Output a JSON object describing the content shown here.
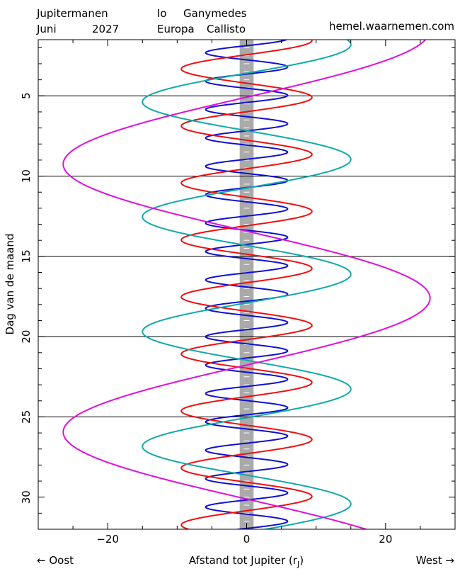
{
  "header": {
    "title": "Jupitermanen",
    "month": "Juni",
    "year": "2027",
    "website": "hemel.waarnemen.com"
  },
  "colors": {
    "io": "#1010d0",
    "europa": "#ee1010",
    "ganymedes": "#10aaaa",
    "callisto": "#dd10dd",
    "jupiter_band": "#aaaaaa",
    "website": "#1010d0"
  },
  "chart_data": {
    "type": "line",
    "title": "Jupitermanen Juni 2027",
    "xlabel": "Afstand tot Jupiter (r",
    "xlabel_subscript": "J",
    "xlabel_suffix": ")",
    "ylabel": "Dag van de maand",
    "x_left_note": "← Oost",
    "x_right_note": "West →",
    "xlim": [
      -30,
      30
    ],
    "ylim": [
      1.5,
      32
    ],
    "y_inverted": true,
    "xticks": [
      -20,
      0,
      20
    ],
    "yticks": [
      5,
      10,
      15,
      20,
      25,
      30
    ],
    "grid_days": [
      5,
      10,
      15,
      20,
      25
    ],
    "jupiter_radius": 1,
    "series": [
      {
        "name": "Io",
        "key": "io",
        "amplitude": 5.9,
        "period_days": 1.769,
        "ref_day": 3.2,
        "ref_sign": 1
      },
      {
        "name": "Europa",
        "key": "europa",
        "amplitude": 9.4,
        "period_days": 3.551,
        "ref_day": 1.55,
        "ref_sign": 1
      },
      {
        "name": "Ganymedes",
        "key": "ganymedes",
        "amplitude": 15.0,
        "period_days": 7.155,
        "ref_day": 1.8,
        "ref_sign": 1
      },
      {
        "name": "Callisto",
        "key": "callisto",
        "amplitude": 26.4,
        "period_days": 16.69,
        "ref_day": 17.6,
        "ref_sign": 1
      }
    ]
  }
}
